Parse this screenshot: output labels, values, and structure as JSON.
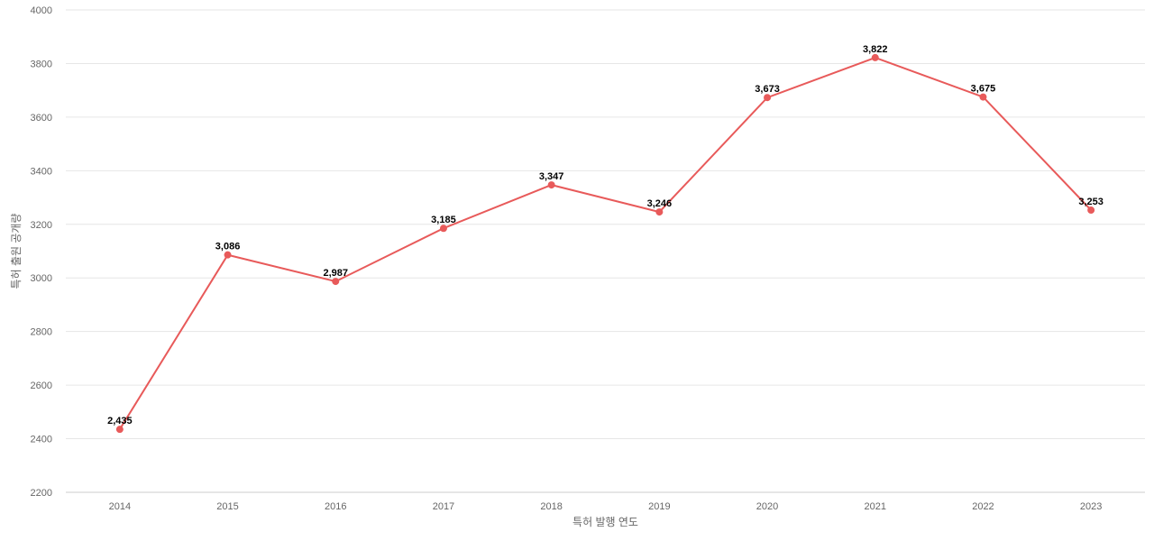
{
  "chart_data": {
    "type": "line",
    "x": [
      "2014",
      "2015",
      "2016",
      "2017",
      "2018",
      "2019",
      "2020",
      "2021",
      "2022",
      "2023"
    ],
    "series": [
      {
        "values": [
          2435,
          3086,
          2987,
          3185,
          3347,
          3246,
          3673,
          3822,
          3675,
          3253
        ],
        "labels": [
          "2,435",
          "3,086",
          "2,987",
          "3,185",
          "3,347",
          "3,246",
          "3,673",
          "3,822",
          "3,675",
          "3,253"
        ],
        "color": "#e85a5a"
      }
    ],
    "xlabel": "특허 발행 연도",
    "ylabel": "특허 출원 공개량",
    "ylim": [
      2200,
      4000
    ],
    "yticks": [
      "2200",
      "2400",
      "2600",
      "2800",
      "3000",
      "3200",
      "3400",
      "3600",
      "3800",
      "4000"
    ],
    "grid": true
  }
}
